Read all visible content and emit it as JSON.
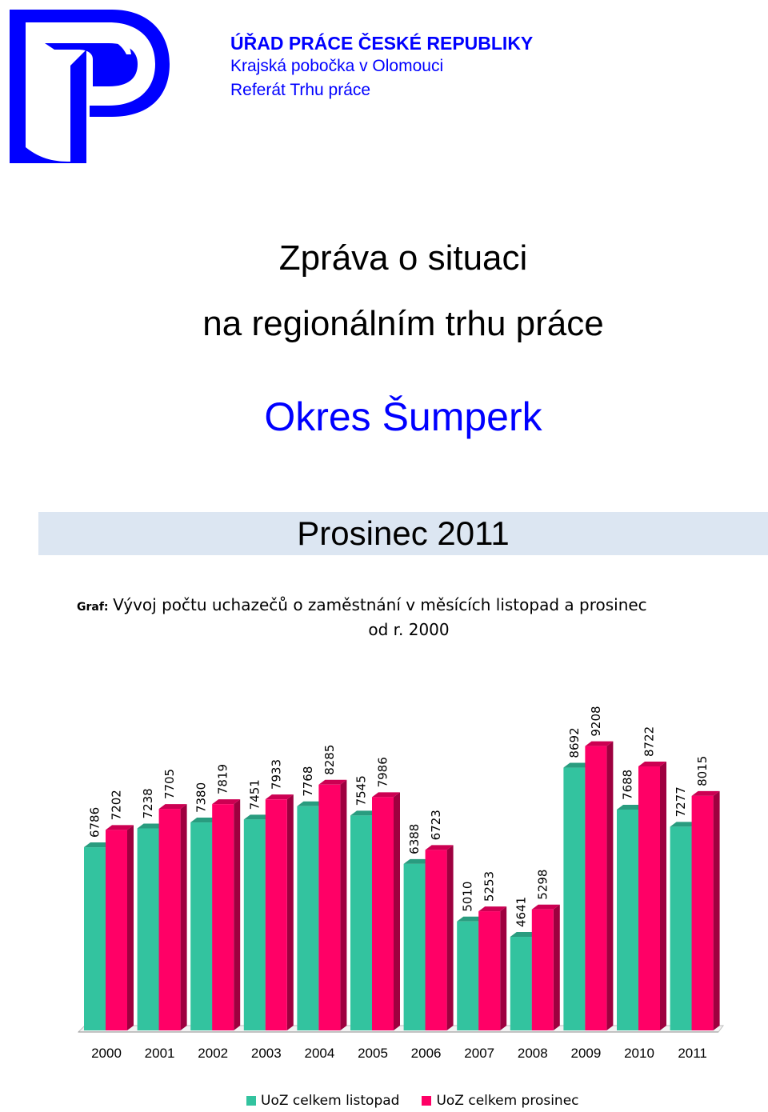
{
  "header": {
    "line1": "ÚŘAD PRÁCE ČESKÉ REPUBLIKY",
    "line2": "Krajská pobočka v Olomouci",
    "line3": "Referát Trhu práce"
  },
  "logo": {
    "icon": "urad-prace-logo",
    "color": "#0000ff"
  },
  "title": {
    "line1": "Zpráva o situaci",
    "line2": "na regionálním trhu práce"
  },
  "district": "Okres Šumperk",
  "period": "Prosinec 2011",
  "caption": {
    "label": "Graf:",
    "text_line1": "Vývoj počtu uchazečů o zaměstnání v měsících listopad a prosinec",
    "text_line2": "od r. 2000"
  },
  "chart_data": {
    "type": "bar",
    "categories": [
      "2000",
      "2001",
      "2002",
      "2003",
      "2004",
      "2005",
      "2006",
      "2007",
      "2008",
      "2009",
      "2010",
      "2011"
    ],
    "series": [
      {
        "name": "UoZ celkem listopad",
        "color": "#33c39f",
        "values": [
          6786,
          7238,
          7380,
          7451,
          7768,
          7545,
          6388,
          5010,
          4641,
          8692,
          7688,
          7277
        ]
      },
      {
        "name": "UoZ celkem prosinec",
        "color": "#ff0066",
        "values": [
          7202,
          7705,
          7819,
          7933,
          8285,
          7986,
          6723,
          5253,
          5298,
          9208,
          8722,
          8015
        ]
      }
    ],
    "style": "3d-columns",
    "legend_position": "bottom",
    "grid": false
  }
}
